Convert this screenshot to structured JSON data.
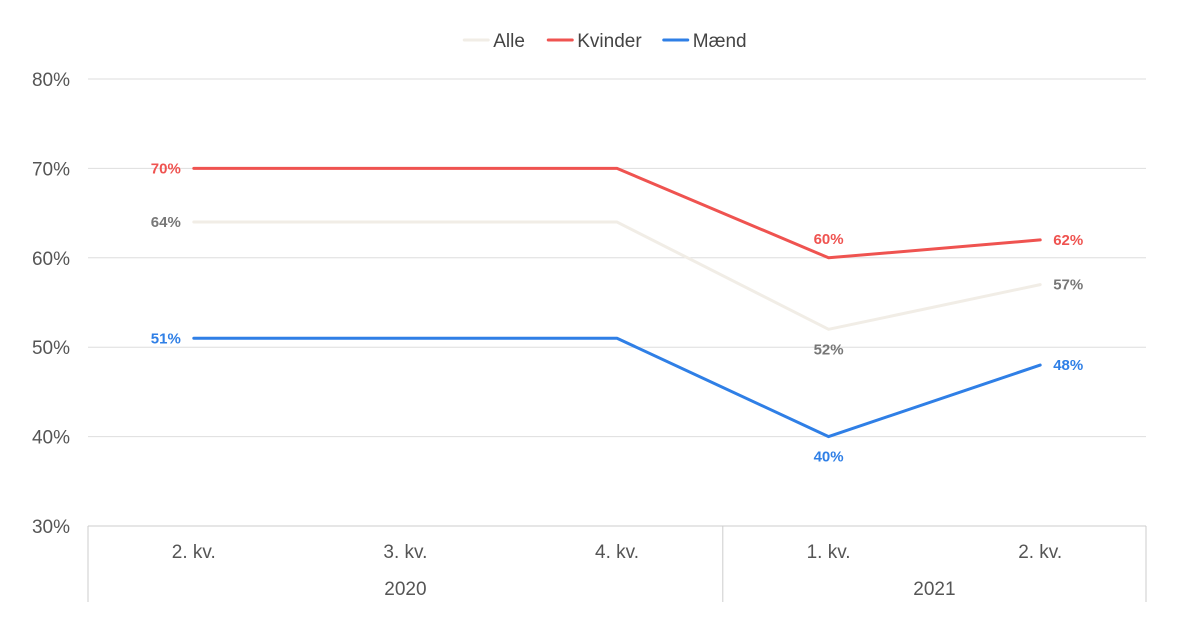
{
  "chart_data": {
    "type": "line",
    "categories": [
      "2. kv.",
      "3. kv.",
      "4. kv.",
      "1. kv.",
      "2. kv."
    ],
    "groups": [
      {
        "label": "2020",
        "start": 0,
        "end": 2
      },
      {
        "label": "2021",
        "start": 3,
        "end": 4
      }
    ],
    "series": [
      {
        "name": "Alle",
        "color": "#f1ede6",
        "label_color": "#777777",
        "values": [
          64,
          64,
          64,
          52,
          57
        ],
        "labels": [
          "64%",
          null,
          null,
          "52%",
          "57%"
        ],
        "label_pos": [
          "left",
          null,
          null,
          "below",
          "right"
        ]
      },
      {
        "name": "Kvinder",
        "color": "#ef5350",
        "label_color": "#ef5350",
        "values": [
          70,
          70,
          70,
          60,
          62
        ],
        "labels": [
          "70%",
          null,
          null,
          "60%",
          "62%"
        ],
        "label_pos": [
          "left",
          null,
          null,
          "above",
          "right"
        ]
      },
      {
        "name": "Mænd",
        "color": "#2f7fe6",
        "label_color": "#2f7fe6",
        "values": [
          51,
          51,
          51,
          40,
          48
        ],
        "labels": [
          "51%",
          null,
          null,
          "40%",
          "48%"
        ],
        "label_pos": [
          "left",
          null,
          null,
          "below",
          "right"
        ]
      }
    ],
    "y_ticks": [
      "30%",
      "40%",
      "50%",
      "60%",
      "70%",
      "80%"
    ],
    "ylim": [
      30,
      80
    ],
    "grid": true,
    "legend": "top-center"
  }
}
